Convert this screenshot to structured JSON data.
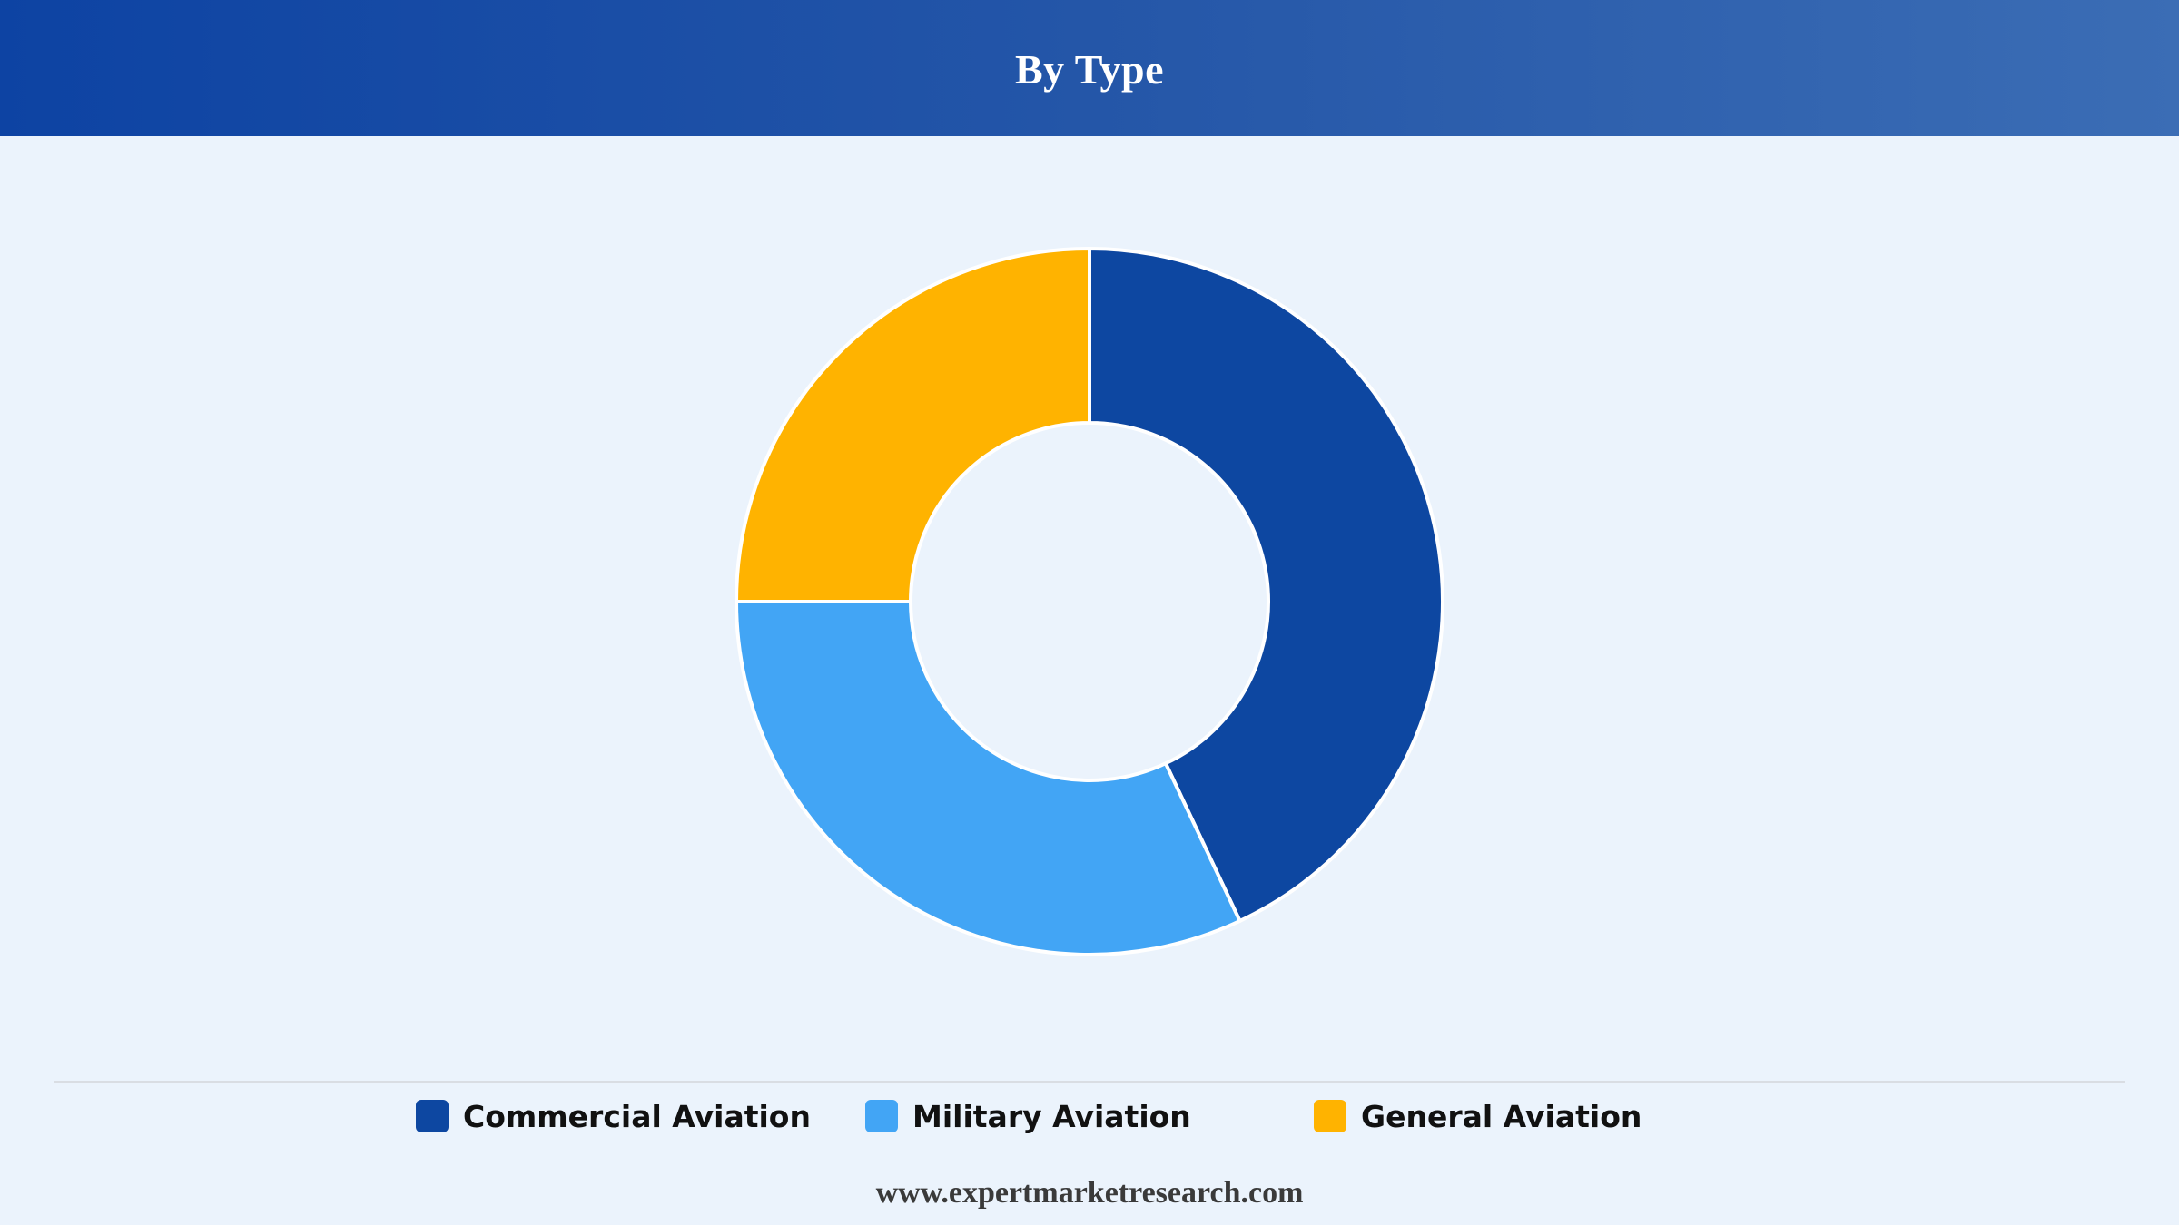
{
  "header": {
    "title": "By Type"
  },
  "chart_data": {
    "type": "pie",
    "variant": "donut",
    "title": "By Type",
    "legend_position": "bottom",
    "categories": [
      "Commercial Aviation",
      "Military Aviation",
      "General Aviation"
    ],
    "values": [
      43,
      32,
      25
    ],
    "unit": "%",
    "colors": [
      "#0d47a1",
      "#42a5f5",
      "#ffb300"
    ]
  },
  "legend": {
    "items": [
      {
        "label": "Commercial Aviation",
        "color": "#0d47a1"
      },
      {
        "label": "Military Aviation",
        "color": "#42a5f5"
      },
      {
        "label": "General Aviation",
        "color": "#ffb300"
      }
    ]
  },
  "footer": {
    "source": "www.expertmarketresearch.com"
  }
}
